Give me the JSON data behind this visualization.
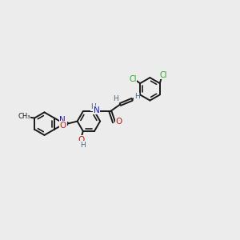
{
  "background_color": "#ececec",
  "bond_color": "#1a1a1a",
  "bond_width": 1.4,
  "atom_colors": {
    "N": "#1a1acc",
    "O": "#cc1a1a",
    "Cl": "#22aa22",
    "H": "#4a6677",
    "C": "#1a1a1a"
  },
  "figsize": [
    3.0,
    3.0
  ],
  "dpi": 100,
  "xlim": [
    0.0,
    9.5
  ],
  "ylim": [
    1.5,
    9.0
  ]
}
